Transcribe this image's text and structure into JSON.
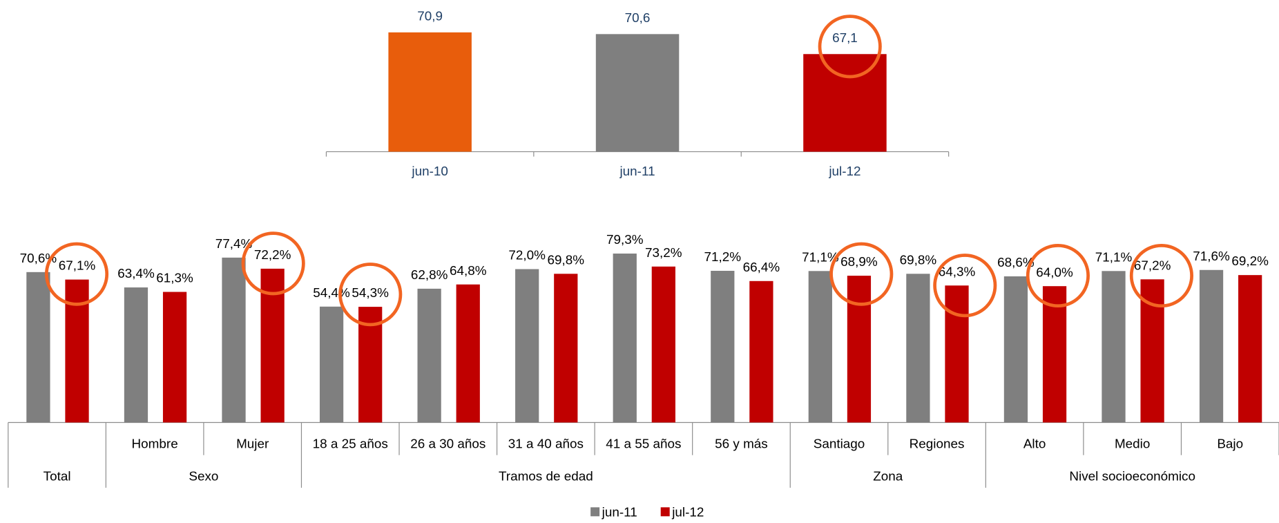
{
  "chart_data": [
    {
      "type": "bar",
      "categories": [
        "jun-10",
        "jun-11",
        "jul-12"
      ],
      "values": [
        70.9,
        70.6,
        67.1
      ],
      "value_labels": [
        "70,9",
        "70,6",
        "67,1"
      ],
      "colors": [
        "#e85d0c",
        "#7f7f7f",
        "#c00000"
      ],
      "ylim": [
        50,
        72
      ]
    },
    {
      "type": "grouped_bar",
      "groups": [
        {
          "label": "Total",
          "categories": [
            null
          ]
        },
        {
          "label": "Sexo",
          "categories": [
            "Hombre",
            "Mujer"
          ]
        },
        {
          "label": "Tramos de edad",
          "categories": [
            "18 a 25 años",
            "26 a 30 años",
            "31 a 40 años",
            "41 a 55 años",
            "56 y más"
          ]
        },
        {
          "label": "Zona",
          "categories": [
            "Santiago",
            "Regiones"
          ]
        },
        {
          "label": "Nivel socioeconómico",
          "categories": [
            "Alto",
            "Medio",
            "Bajo"
          ]
        }
      ],
      "series": [
        {
          "name": "jun-11",
          "color": "#7f7f7f",
          "values": [
            70.6,
            63.4,
            77.4,
            54.4,
            62.8,
            72.0,
            79.3,
            71.2,
            71.1,
            69.8,
            68.6,
            71.1,
            71.6
          ],
          "value_labels": [
            "70,6%",
            "63,4%",
            "77,4%",
            "54,4%",
            "62,8%",
            "72,0%",
            "79,3%",
            "71,2%",
            "71,1%",
            "69,8%",
            "68,6%",
            "71,1%",
            "71,6%"
          ]
        },
        {
          "name": "jul-12",
          "color": "#c00000",
          "values": [
            67.1,
            61.3,
            72.2,
            54.3,
            64.8,
            69.8,
            73.2,
            66.4,
            68.9,
            64.3,
            64.0,
            67.2,
            69.2
          ],
          "value_labels": [
            "67,1%",
            "61,3%",
            "72,2%",
            "54,3%",
            "64,8%",
            "69,8%",
            "73,2%",
            "66,4%",
            "68,9%",
            "64,3%",
            "64,0%",
            "67,2%",
            "69,2%"
          ]
        }
      ],
      "ylim": [
        0,
        85
      ],
      "legend": "bottom"
    }
  ]
}
